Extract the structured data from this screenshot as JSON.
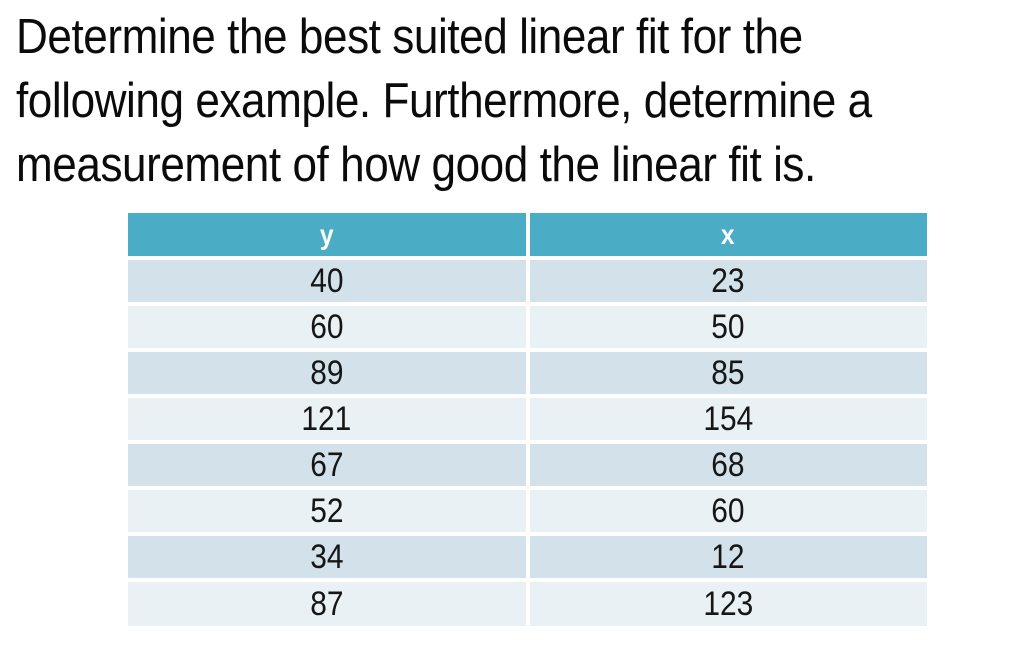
{
  "title": {
    "lines": [
      "Determine the best suited linear fit for the",
      "following example. Furthermore, determine a",
      "measurement of how good the linear fit is."
    ]
  },
  "table": {
    "headers": [
      "y",
      "x"
    ],
    "rows": [
      {
        "y": "40",
        "x": "23"
      },
      {
        "y": "60",
        "x": "50"
      },
      {
        "y": "89",
        "x": "85"
      },
      {
        "y": "121",
        "x": "154"
      },
      {
        "y": "67",
        "x": "68"
      },
      {
        "y": "52",
        "x": "60"
      },
      {
        "y": "34",
        "x": "12"
      },
      {
        "y": "87",
        "x": "123"
      }
    ]
  },
  "colors": {
    "header_bg": "#4bacc6",
    "header_text": "#ffffff",
    "row_odd_bg": "#d3e2ea",
    "row_even_bg": "#eaf1f5",
    "body_text": "#161616",
    "page_bg": "#ffffff"
  },
  "chart_data": {
    "type": "table",
    "columns": [
      "y",
      "x"
    ],
    "y": [
      40,
      60,
      89,
      121,
      67,
      52,
      34,
      87
    ],
    "x": [
      23,
      50,
      85,
      154,
      68,
      60,
      12,
      123
    ],
    "title": "Determine the best suited linear fit for the following example. Furthermore, determine a measurement of how good the linear fit is."
  }
}
